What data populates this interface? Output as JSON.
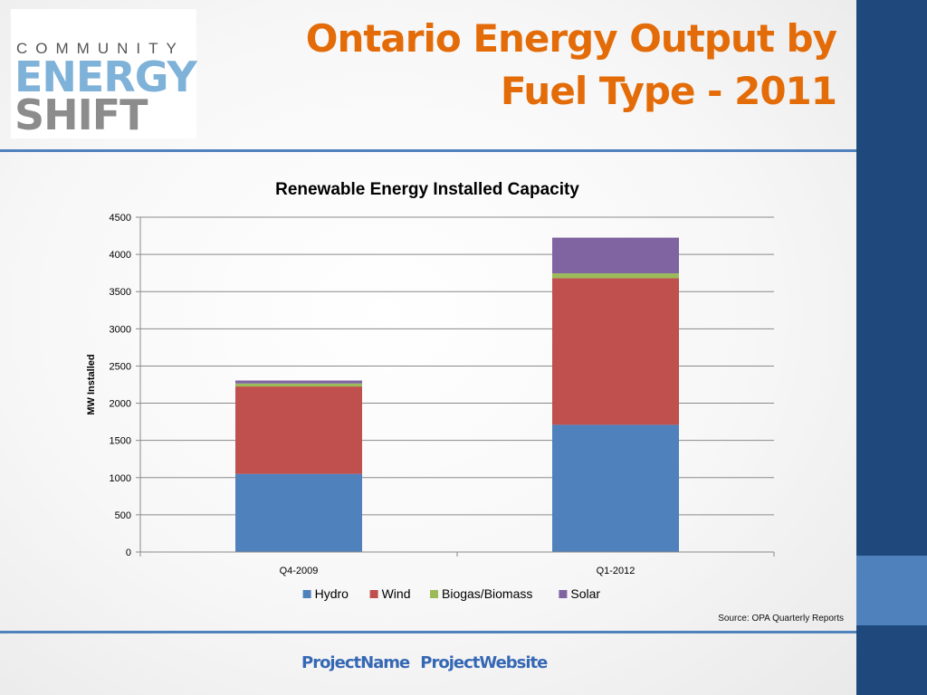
{
  "logo": {
    "community": "COMMUNITY",
    "energy": "ENERGY",
    "shift": "SHIFT"
  },
  "slide": {
    "title_line1": "Ontario Energy Output by",
    "title_line2": "Fuel Type - 2011",
    "source": "Source:  OPA Quarterly Reports",
    "footer_name": "ProjectName",
    "footer_website": "ProjectWebsite"
  },
  "colors": {
    "accent_orange": "#e36c09",
    "sidebar_navy": "#1f497d",
    "sidebar_blue": "#4f81bd"
  },
  "chart_data": {
    "type": "bar",
    "stacked": true,
    "title": "Renewable Energy Installed Capacity",
    "xlabel": "",
    "ylabel": "MW Installed",
    "ylim": [
      0,
      4500
    ],
    "yticks": [
      0,
      500,
      1000,
      1500,
      2000,
      2500,
      3000,
      3500,
      4000,
      4500
    ],
    "categories": [
      "Q4-2009",
      "Q1-2012"
    ],
    "series": [
      {
        "name": "Hydro",
        "color": "#4f81bd",
        "values": [
          1050,
          1710
        ]
      },
      {
        "name": "Wind",
        "color": "#c0504d",
        "values": [
          1175,
          1970
        ]
      },
      {
        "name": "Biogas/Biomass",
        "color": "#9bbb59",
        "values": [
          40,
          65
        ]
      },
      {
        "name": "Solar",
        "color": "#8064a2",
        "values": [
          40,
          480
        ]
      }
    ],
    "grid": true,
    "legend": "bottom"
  }
}
